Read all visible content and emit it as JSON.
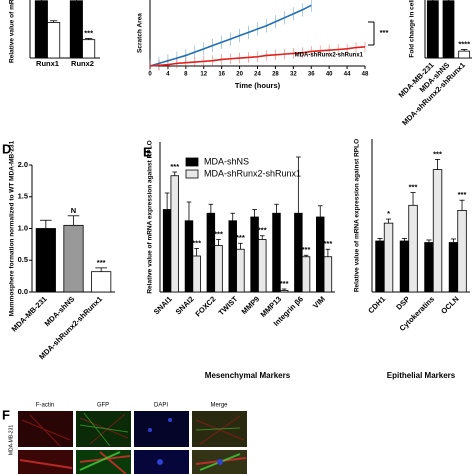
{
  "chart_data": [
    {
      "type": "bar",
      "ylabel": "Relative value of mRNA",
      "categories": [
        "Runx1",
        "Runx2"
      ],
      "series": [
        {
          "color": "#000000",
          "values": [
            1.0,
            1.0
          ],
          "errors": [
            0.08,
            0.08
          ]
        },
        {
          "color": "#ffffff",
          "values": [
            0.62,
            0.32
          ],
          "errors": [
            0.03,
            0.02
          ],
          "significance": [
            null,
            "***"
          ]
        }
      ],
      "ylim": [
        0,
        1.1
      ]
    },
    {
      "type": "line",
      "ylabel": "Scratch Area",
      "xlabel": "Time (hours)",
      "xlim": [
        0,
        48
      ],
      "xticks": [
        0,
        4,
        8,
        12,
        16,
        20,
        24,
        28,
        32,
        36,
        40,
        44,
        48
      ],
      "ylim": [
        0,
        100
      ],
      "annotation": "***",
      "series": [
        {
          "color": "#1f6fb4",
          "x": [
            0,
            2,
            4,
            6,
            8,
            10,
            12,
            14,
            16,
            18,
            20,
            22,
            24,
            26,
            28,
            30,
            32,
            34,
            36
          ],
          "values": [
            0,
            4,
            8,
            12,
            16,
            21,
            26,
            31,
            36,
            41,
            46,
            51,
            56,
            61,
            67,
            73,
            79,
            85,
            92
          ],
          "errors": [
            10,
            10,
            10,
            10,
            10,
            10,
            10,
            10,
            10,
            10,
            10,
            10,
            10,
            10,
            10,
            10,
            10,
            10,
            10
          ]
        },
        {
          "name": "MDA-shRunx2-shRunx1",
          "color": "#e0201b",
          "x": [
            0,
            2,
            4,
            6,
            8,
            10,
            12,
            14,
            16,
            18,
            20,
            22,
            24,
            26,
            28,
            30,
            32,
            34,
            36,
            38,
            40,
            42,
            44,
            46,
            48
          ],
          "values": [
            0,
            1,
            2,
            4,
            5,
            6,
            7,
            8,
            10,
            11,
            12,
            13,
            14,
            16,
            17,
            18,
            19,
            20,
            22,
            23,
            24,
            25,
            26,
            28,
            29
          ],
          "errors": [
            8,
            8,
            8,
            8,
            8,
            8,
            8,
            8,
            8,
            8,
            8,
            8,
            8,
            8,
            8,
            8,
            8,
            8,
            8,
            8,
            8,
            8,
            8,
            8,
            8
          ]
        }
      ]
    },
    {
      "type": "bar",
      "ylabel": "Fold change in cell i",
      "categories": [
        "MDA-MB-231",
        "MDA-shNS",
        "MDA-shRunx2-shRunx1"
      ],
      "series": [
        {
          "colors": [
            "#000000",
            "#000000",
            "#ffffff"
          ],
          "values": [
            1.0,
            1.0,
            0.12
          ],
          "errors": [
            0.05,
            0.05,
            0.03
          ],
          "significance": [
            null,
            null,
            "****"
          ]
        }
      ],
      "ylim": [
        0,
        1.1
      ]
    },
    {
      "type": "bar",
      "panel": "D",
      "ylabel": "Mammosphere formation normalized to WT MDA-MB-231",
      "categories": [
        "MDA-MB-231",
        "MDA-shNS",
        "MDA-shRunx2-shRunx1"
      ],
      "series": [
        {
          "colors": [
            "#000000",
            "#999999",
            "#ffffff"
          ],
          "values": [
            1.0,
            1.05,
            0.32
          ],
          "errors": [
            0.13,
            0.15,
            0.06
          ],
          "significance": [
            null,
            "N",
            "***"
          ]
        }
      ],
      "ylim": [
        0,
        2.0
      ],
      "yticks": [
        {
          "value": 0,
          "label": "0.0"
        },
        {
          "value": 0.5,
          "label": "0.5"
        },
        {
          "value": 1,
          "label": "1.0"
        },
        {
          "value": 1.5,
          "label": "1.5"
        },
        {
          "value": 2,
          "label": "2.0"
        }
      ]
    },
    {
      "type": "bar",
      "panel": "E",
      "ylabel": "Relative value of mRNA expression against RPLO",
      "xlabel": "Mesenchymal Markers",
      "categories": [
        "SNAI1",
        "SNAI2",
        "FOXC2",
        "TWIST",
        "MMP9",
        "MMP13",
        "Integrin β6",
        "VIM"
      ],
      "series": [
        {
          "name": "MDA-shNS",
          "color": "#000000",
          "values": [
            1.1,
            0.95,
            1.05,
            0.95,
            1.0,
            1.05,
            1.05,
            1.0
          ],
          "errors": [
            0.22,
            0.25,
            0.12,
            0.1,
            0.1,
            0.12,
            0.75,
            0.15
          ]
        },
        {
          "name": "MDA-shRunx2-shRunx1",
          "color": "#e8e8e8",
          "values": [
            1.55,
            0.48,
            0.62,
            0.57,
            0.7,
            0.02,
            0.47,
            0.47
          ],
          "errors": [
            0.05,
            0.1,
            0.08,
            0.08,
            0.05,
            0.02,
            0.02,
            0.1
          ],
          "significance": [
            "***",
            "***",
            "***",
            "***",
            "***",
            "***",
            "***",
            "***"
          ]
        }
      ],
      "ylim": [
        0,
        2.0
      ]
    },
    {
      "type": "bar",
      "ylabel": "Relative value of mRNA expression against RPLO",
      "xlabel": "Epithelial Markers",
      "categories": [
        "CDH1",
        "DSP",
        "Cytokeratins",
        "OCLN"
      ],
      "series": [
        {
          "color": "#000000",
          "values": [
            1.0,
            1.0,
            0.97,
            0.97
          ],
          "errors": [
            0.05,
            0.05,
            0.05,
            0.07
          ]
        },
        {
          "color": "#e8e8e8",
          "values": [
            1.35,
            1.7,
            2.4,
            1.6
          ],
          "errors": [
            0.08,
            0.25,
            0.2,
            0.2
          ],
          "significance": [
            "*",
            "***",
            "***",
            "***"
          ]
        }
      ],
      "ylim": [
        0,
        3.0
      ]
    }
  ],
  "panel_f": {
    "label": "F",
    "columns": [
      "F-actin",
      "GFP",
      "DAPI",
      "Merge"
    ],
    "row_label": "MDA-MB-231"
  }
}
